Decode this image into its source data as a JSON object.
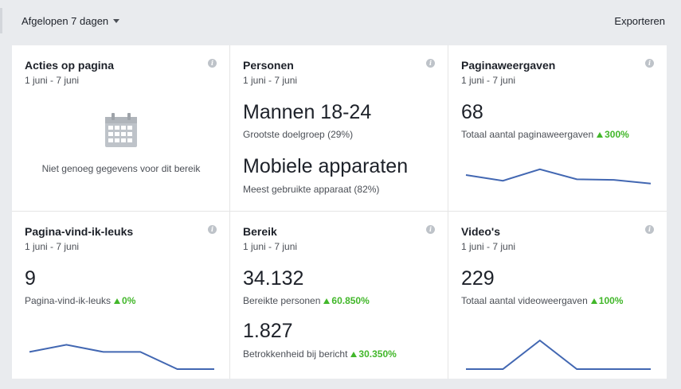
{
  "header": {
    "range_label": "Afgelopen 7 dagen",
    "export_label": "Exporteren"
  },
  "cards": {
    "acties": {
      "title": "Acties op pagina",
      "date": "1 juni - 7 juni",
      "empty_text": "Niet genoeg gegevens voor dit bereik",
      "info": "i"
    },
    "personen": {
      "title": "Personen",
      "date": "1 juni - 7 juni",
      "info": "i",
      "metric1_value": "Mannen 18-24",
      "metric1_label": "Grootste doelgroep (29%)",
      "metric2_value": "Mobiele apparaten",
      "metric2_label": "Meest gebruikte apparaat (82%)"
    },
    "paginaweergaven": {
      "title": "Paginaweergaven",
      "date": "1 juni - 7 juni",
      "info": "i",
      "value": "68",
      "label": "Totaal aantal paginaweergaven",
      "change": "300%",
      "spark": [
        0.75,
        0.55,
        0.95,
        0.6,
        0.58,
        0.45
      ]
    },
    "likes": {
      "title": "Pagina-vind-ik-leuks",
      "date": "1 juni - 7 juni",
      "info": "i",
      "value": "9",
      "label": "Pagina-vind-ik-leuks",
      "change": "0%",
      "spark": [
        0.6,
        0.85,
        0.6,
        0.6,
        0.0,
        0.0
      ]
    },
    "bereik": {
      "title": "Bereik",
      "date": "1 juni - 7 juni",
      "info": "i",
      "value1": "34.132",
      "label1": "Bereikte personen",
      "change1": "60.850%",
      "value2": "1.827",
      "label2": "Betrokkenheid bij bericht",
      "change2": "30.350%"
    },
    "videos": {
      "title": "Video's",
      "date": "1 juni - 7 juni",
      "info": "i",
      "value": "229",
      "label": "Totaal aantal videoweergaven",
      "change": "100%",
      "spark": [
        0.0,
        0.0,
        1.0,
        0.0,
        0.0,
        0.0
      ]
    }
  },
  "colors": {
    "accent_line": "#4267b2",
    "increase": "#42b72a"
  }
}
